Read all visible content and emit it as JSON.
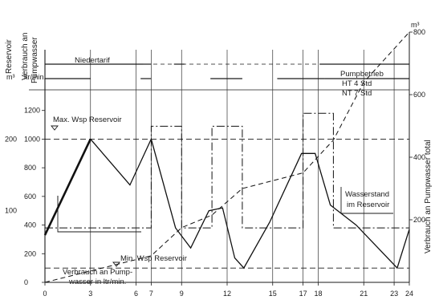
{
  "chart_data": {
    "type": "line",
    "axes": {
      "left_outer": {
        "title_line1": "Reservoir",
        "unit": "m³",
        "ticks": [
          {
            "label": "200",
            "value": 1000
          },
          {
            "label": "100",
            "value": 500
          }
        ]
      },
      "left_inner": {
        "title_line1": "Verbrauch an",
        "title_line2": "Pumpwasser",
        "unit": "ltr/min.",
        "ticks": [
          "0",
          "200",
          "400",
          "600",
          "800",
          "1000",
          "1200"
        ],
        "ylim": [
          0,
          1400
        ]
      },
      "right": {
        "title": "Verbrauch an Pumpwasser total",
        "unit": "m³",
        "ticks": [
          "200",
          "400",
          "600",
          "800"
        ],
        "ylim": [
          0,
          800
        ]
      },
      "x": {
        "ticks": [
          "0",
          "3",
          "6",
          "7",
          "9",
          "12",
          "15",
          "17",
          "18",
          "21",
          "23",
          "24"
        ],
        "xlim": [
          0,
          24
        ]
      }
    },
    "series": [
      {
        "name": "Wasserstand im Reservoir",
        "style": "solid",
        "x": [
          0,
          3,
          5.6,
          7,
          8.6,
          9.6,
          10.8,
          11.7,
          12.5,
          13.1,
          14.8,
          16.9,
          17.8,
          18.8,
          20.5,
          23.2,
          24
        ],
        "y": [
          330,
          1000,
          680,
          1000,
          380,
          240,
          500,
          520,
          170,
          100,
          420,
          900,
          900,
          540,
          400,
          100,
          370
        ]
      },
      {
        "name": "Verbrauch an Pumpwasser in ltr/min.",
        "style": "dash-dot",
        "x": [
          0,
          7,
          7,
          9,
          9,
          11,
          11,
          13,
          13,
          17,
          17,
          19,
          19,
          24
        ],
        "y": [
          380,
          380,
          1090,
          1090,
          380,
          380,
          1090,
          1090,
          380,
          380,
          1180,
          1180,
          380,
          380
        ]
      },
      {
        "name": "Verbrauch an Pumpwasser total",
        "style": "dashed",
        "x": [
          0,
          7,
          9,
          11,
          13,
          17,
          19,
          21,
          24
        ],
        "y": [
          0,
          85,
          175,
          215,
          300,
          350,
          455,
          640,
          800
        ]
      }
    ],
    "reference_lines": [
      {
        "label": "Max. Wsp Reservoir",
        "y": 1000
      },
      {
        "label": "Min. Wsp Reservoir",
        "y": 100
      }
    ],
    "tariff_row": {
      "label": "Niedertarif",
      "segments": [
        [
          0,
          6.5
        ],
        [
          6.5,
          7
        ],
        [
          8.5,
          9.2
        ],
        [
          18.1,
          24
        ]
      ]
    },
    "pump_row": {
      "segments": [
        [
          0,
          3
        ],
        [
          6.3,
          7
        ],
        [
          10.9,
          13
        ],
        [
          15.3,
          18.4
        ],
        [
          18.4,
          24
        ]
      ]
    },
    "annotations": {
      "pumpbetrieb_line1": "Pumpbetrieb",
      "pumpbetrieb_line2": "HT 4 Std",
      "pumpbetrieb_line3": "NT 7 Std",
      "verbrauch_line1": "Verbrauch an Pump-",
      "verbrauch_line2": "wasser in ltr/min.",
      "wasserstand_line1": "Wasserstand",
      "wasserstand_line2": "im Reservoir"
    },
    "grid": false
  }
}
